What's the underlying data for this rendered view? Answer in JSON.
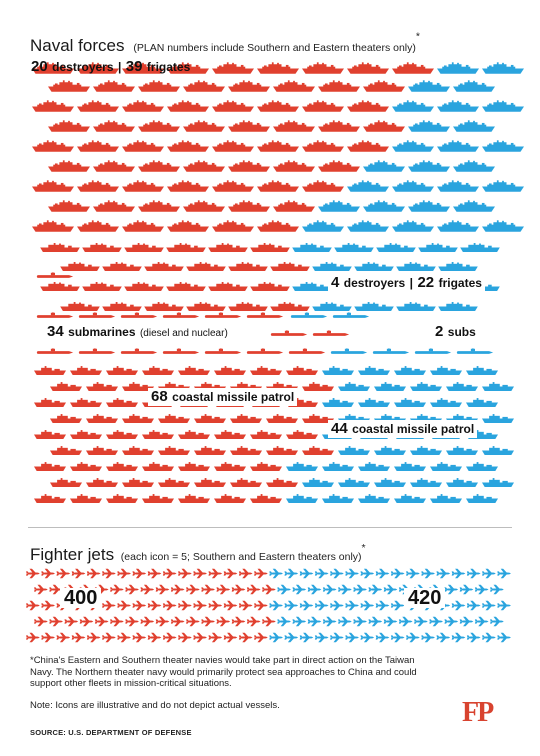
{
  "colors": {
    "plan": "#e0402f",
    "us": "#2aa4de",
    "logo": "#d8432f"
  },
  "naval": {
    "title": "Naval forces",
    "subtitle": "(PLAN numbers include Southern and Eastern theaters only)",
    "subtitle_mark": "*",
    "plan_surface": {
      "destroyers": "20",
      "destroyers_label": "destroyers",
      "separator": "|",
      "frigates": "39",
      "frigates_label": "frigates"
    },
    "us_surface": {
      "destroyers": "4",
      "destroyers_label": "destroyers",
      "separator": "|",
      "frigates": "22",
      "frigates_label": "frigates"
    },
    "plan_subs": {
      "count": "34",
      "label": "submarines",
      "detail": "(diesel and nuclear)"
    },
    "us_subs": {
      "count": "2",
      "label": "subs"
    },
    "plan_patrol": {
      "count": "68",
      "label": "coastal missile patrol"
    },
    "us_patrol": {
      "count": "44",
      "label": "coastal missile patrol"
    },
    "icons": {
      "large_ship": "destroyer-icon",
      "small_ship": "frigate-icon",
      "sub": "submarine-icon",
      "boat": "patrol-boat-icon"
    }
  },
  "fighter_jets": {
    "title": "Fighter jets",
    "subtitle": "(each icon = 5; Southern and Eastern theaters only)",
    "subtitle_mark": "*",
    "plan_count": "400",
    "us_count": "420",
    "icon": "fighter-jet-icon"
  },
  "footnote": "*China's Eastern and Southern theater navies would take part in direct action on the Taiwan Navy. The Northern theater navy would primarily protect sea approaches to China and could support other fleets in mission-critical situations.",
  "icon_note": "Note: Icons are illustrative and do not depict actual vessels.",
  "source": "SOURCE: U.S. DEPARTMENT OF DEFENSE",
  "logo": "FP"
}
